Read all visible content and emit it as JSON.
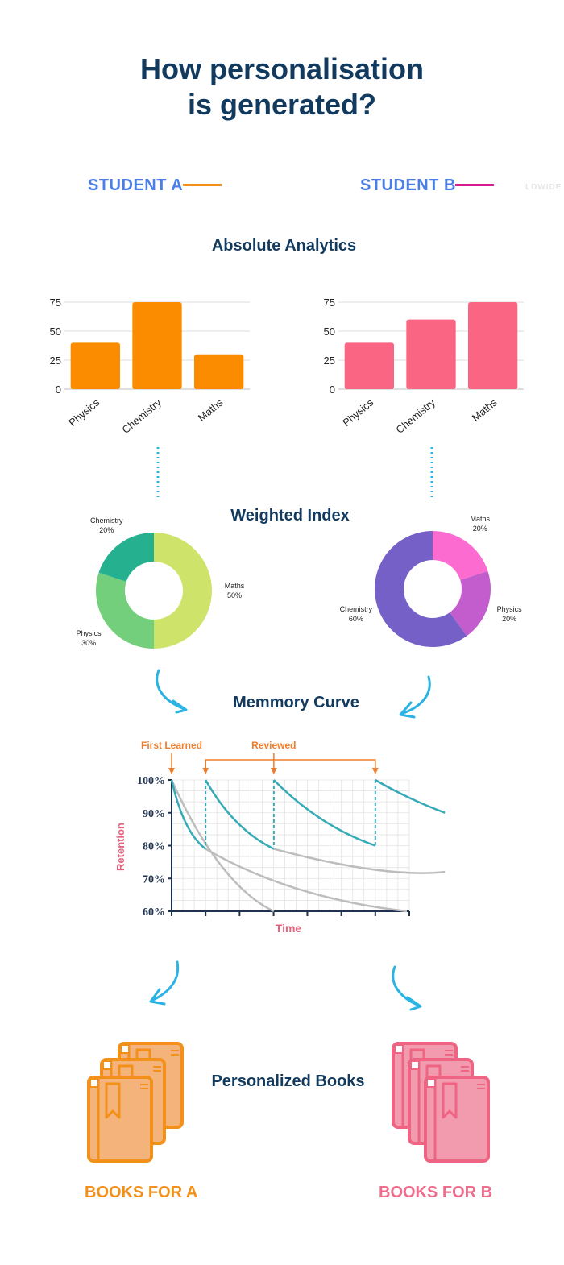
{
  "title": {
    "line1": "How personalisation",
    "line2": "is generated?"
  },
  "students": [
    {
      "label": "STUDENT A",
      "line_color": "#f39019"
    },
    {
      "label": "STUDENT B",
      "line_color": "#d81b94"
    }
  ],
  "watermark": "LDWIDE",
  "sections": {
    "absolute": "Absolute Analytics",
    "weighted": "Weighted Index",
    "memory": "Memmory Curve",
    "books": "Personalized Books"
  },
  "chart_data": [
    {
      "type": "bar",
      "name_hint": "student-a-analytics",
      "categories": [
        "Physics",
        "Chemistry",
        "Maths"
      ],
      "values": [
        40,
        75,
        30
      ],
      "yticks": [
        0,
        25,
        50,
        75
      ],
      "ylim": [
        0,
        75
      ],
      "color": "#fb8c00"
    },
    {
      "type": "bar",
      "name_hint": "student-b-analytics",
      "categories": [
        "Physics",
        "Chemistry",
        "Maths"
      ],
      "values": [
        40,
        60,
        75
      ],
      "yticks": [
        0,
        25,
        50,
        75
      ],
      "ylim": [
        0,
        75
      ],
      "color": "#fb6584"
    },
    {
      "type": "pie",
      "name_hint": "student-a-weighted",
      "slices": [
        {
          "label": "Maths",
          "pct_label": "50%",
          "value": 50,
          "color": "#cde36a"
        },
        {
          "label": "Physics",
          "pct_label": "30%",
          "value": 30,
          "color": "#74cf7d"
        },
        {
          "label": "Chemistry",
          "pct_label": "20%",
          "value": 20,
          "color": "#25b08f"
        }
      ]
    },
    {
      "type": "pie",
      "name_hint": "student-b-weighted",
      "slices": [
        {
          "label": "Maths",
          "pct_label": "20%",
          "value": 20,
          "color": "#fc6bd0"
        },
        {
          "label": "Physics",
          "pct_label": "20%",
          "value": 20,
          "color": "#c35ccd"
        },
        {
          "label": "Chemistry",
          "pct_label": "60%",
          "value": 60,
          "color": "#7460c6"
        }
      ]
    },
    {
      "type": "line",
      "name_hint": "memory-curve",
      "xlabel": "Time",
      "ylabel": "Retention",
      "yticks": [
        "100%",
        "90%",
        "80%",
        "70%",
        "60%"
      ],
      "ylim": [
        60,
        100
      ],
      "annotations": {
        "first": "First Learned",
        "reviewed": "Reviewed"
      },
      "colors": {
        "review": "#36aab6",
        "decay": "#bdbdbd",
        "arrow": "#f07d2b",
        "axis": "#1e3250",
        "label": "#e9607f"
      }
    }
  ],
  "books": {
    "a_label": "BOOKS FOR A",
    "b_label": "BOOKS FOR B"
  }
}
